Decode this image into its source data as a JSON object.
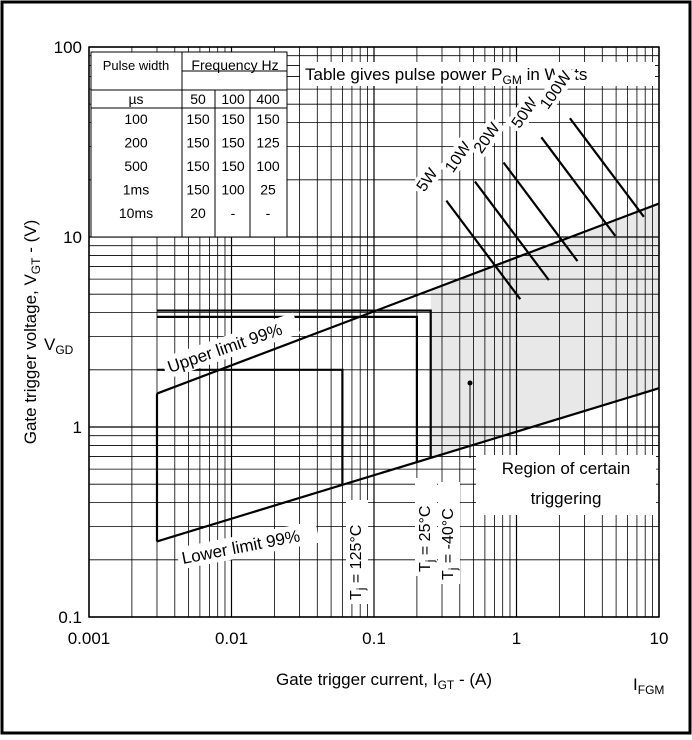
{
  "chart_data": {
    "type": "line",
    "x_scale": "log",
    "y_scale": "log",
    "xlim": [
      0.001,
      10
    ],
    "ylim": [
      0.1,
      100
    ],
    "x_ticks": [
      {
        "value": 0.001,
        "label": "0.001"
      },
      {
        "value": 0.01,
        "label": "0.01"
      },
      {
        "value": 0.1,
        "label": "0.1"
      },
      {
        "value": 1,
        "label": "1"
      },
      {
        "value": 10,
        "label": "10"
      }
    ],
    "y_ticks": [
      {
        "value": 0.1,
        "label": "0.1"
      },
      {
        "value": 1,
        "label": "1"
      },
      {
        "value": 10,
        "label": "10"
      },
      {
        "value": 100,
        "label": "100"
      }
    ],
    "xlabel": {
      "main": "Gate trigger current, I",
      "sub": "GT",
      "rest": " - (A)"
    },
    "ylabel": {
      "main": "Gate trigger voltage, V",
      "sub": "GT",
      "rest": " - (V)"
    },
    "extra_axis_label": {
      "main": "I",
      "sub": "FGM"
    },
    "vgd_label": {
      "main": "V",
      "sub": "GD",
      "value": 0.25
    },
    "grid": true,
    "upper_limit": {
      "label": "Upper limit 99%",
      "points": [
        [
          0.003,
          1.5
        ],
        [
          10,
          15
        ]
      ]
    },
    "lower_limit": {
      "label": "Lower limit 99%",
      "points": [
        [
          0.003,
          0.25
        ],
        [
          10,
          1.6
        ]
      ]
    },
    "left_boundary": {
      "x": 0.003
    },
    "temperature_boxes": [
      {
        "label_main": "T",
        "label_sub": "j",
        "label_rest": " = 125°C",
        "igt": 0.06,
        "vgt": 2.0
      },
      {
        "label_main": "T",
        "label_sub": "j",
        "label_rest": " = 25°C",
        "igt": 0.2,
        "vgt": 3.8
      },
      {
        "label_main": "T",
        "label_sub": "j",
        "label_rest": " = -40°C",
        "igt": 0.25,
        "vgt": 4.1
      }
    ],
    "power_lines": [
      {
        "label": "5W",
        "watts": 5
      },
      {
        "label": "10W",
        "watts": 10
      },
      {
        "label": "20W",
        "watts": 20
      },
      {
        "label": "50W",
        "watts": 50
      },
      {
        "label": "100W",
        "watts": 100
      }
    ],
    "region_label": [
      "Region of certain",
      "triggering"
    ],
    "region_color": "#e8e8e8",
    "table_title": {
      "main": "Table gives pulse power P",
      "sub": "GM",
      "rest": " in Watts"
    },
    "table": {
      "header1": [
        "Pulse width",
        "Frequency Hz"
      ],
      "header2": [
        "µs",
        "50",
        "100",
        "400"
      ],
      "rows": [
        [
          "100",
          "150",
          "150",
          "150"
        ],
        [
          "200",
          "150",
          "150",
          "125"
        ],
        [
          "500",
          "150",
          "150",
          "100"
        ],
        [
          "1ms",
          "150",
          "100",
          "25"
        ],
        [
          "10ms",
          "20",
          "-",
          "-"
        ]
      ]
    }
  }
}
